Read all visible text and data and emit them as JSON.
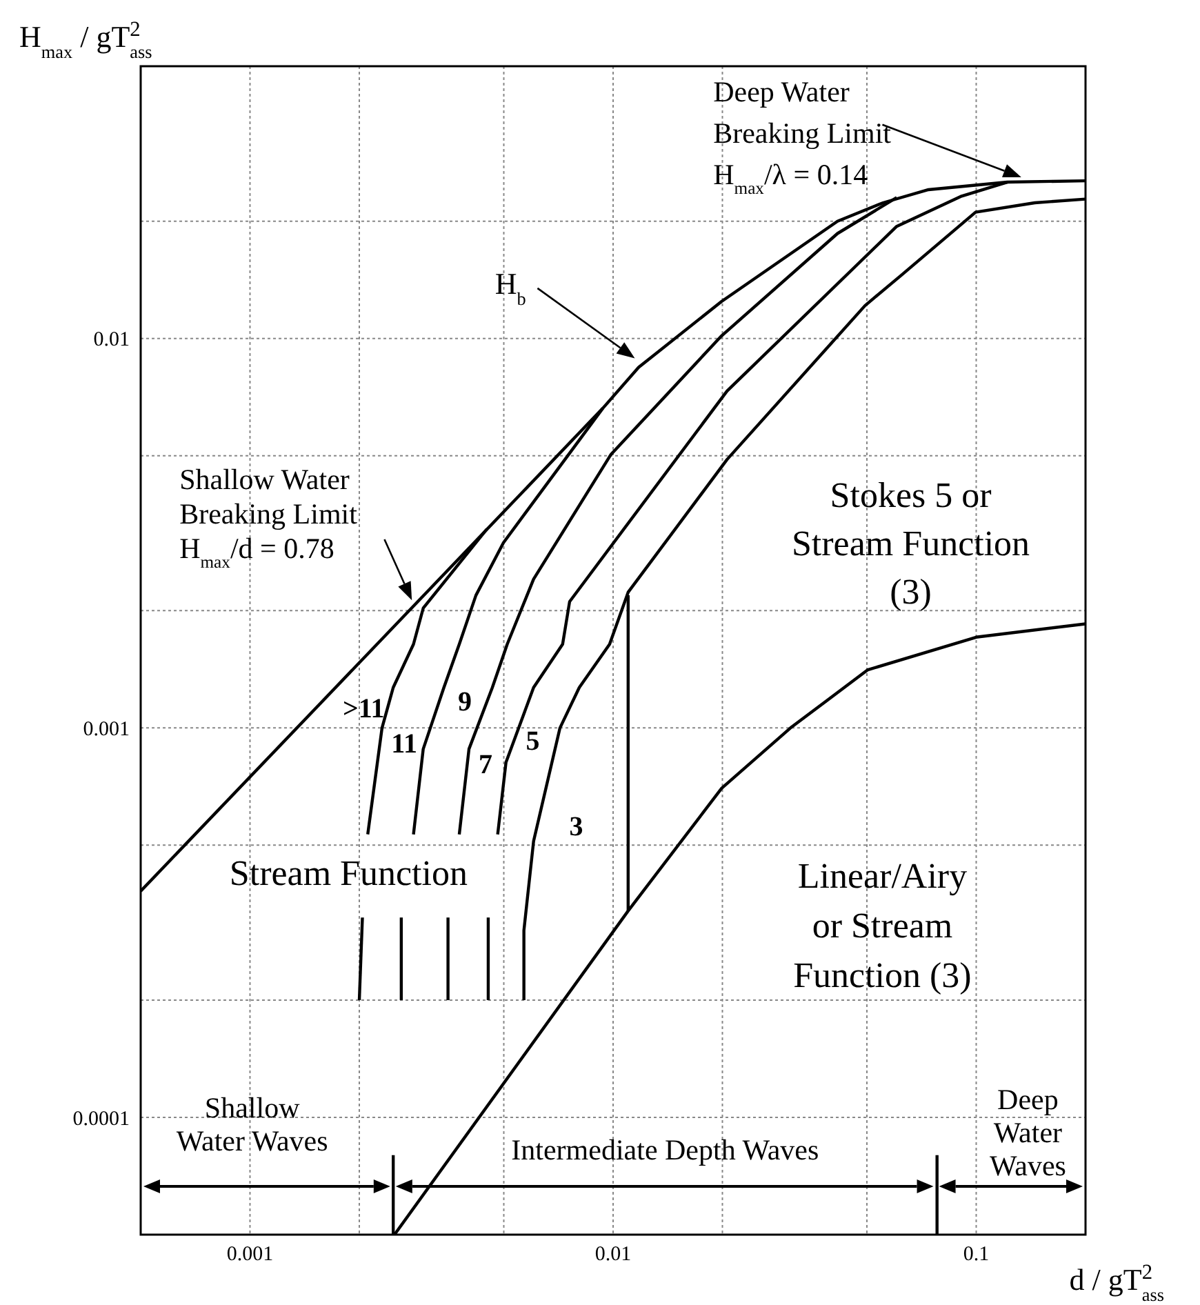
{
  "chart_data": {
    "type": "line",
    "xlabel": "d / gT$^{2}$$_{ass}$",
    "ylabel": "H$_{max}$ / gT$^{2}$$_{ass}$",
    "log": "xy",
    "grid": true,
    "line_style": "solid",
    "xlim": [
      0.0005,
      0.2
    ],
    "ylim": [
      5e-05,
      0.05
    ],
    "xticks": [
      0.001,
      {
        "value": 0.002,
        "label": null
      },
      {
        "value": 0.005,
        "label": null
      },
      0.01,
      {
        "value": 0.02,
        "label": null
      },
      {
        "value": 0.05,
        "label": null
      },
      0.1
    ],
    "yticks": [
      0.0001,
      {
        "value": 0.0002,
        "label": null
      },
      {
        "value": 0.0005,
        "label": null
      },
      0.001,
      {
        "value": 0.002,
        "label": null
      },
      {
        "value": 0.005,
        "label": null
      },
      0.01,
      {
        "value": 0.02,
        "label": null
      }
    ],
    "series": [
      {
        "color": "#000000",
        "x": [
          0.0005,
          0.00937,
          0.01176,
          0.0199,
          0.0415,
          0.0554,
          0.0739,
          0.1218,
          0.2
        ],
        "values": [
          0.000381,
          0.00662,
          0.00843,
          0.01245,
          0.02,
          0.0223,
          0.0241,
          0.0252,
          0.0254
        ]
      },
      {
        "color": "#000000",
        "x": [
          0.002,
          0.00204
        ],
        "values": [
          0.0002,
          0.000326
        ]
      },
      {
        "color": "#000000",
        "x": [
          0.00211,
          0.00231,
          0.00248,
          0.00282,
          0.003,
          0.00449
        ],
        "values": [
          0.000533,
          0.001,
          0.00127,
          0.00164,
          0.00203,
          0.00324
        ]
      },
      {
        "color": "#000000",
        "x": [
          0.00261,
          0.00261
        ],
        "values": [
          0.0002,
          0.000326
        ]
      },
      {
        "color": "#000000",
        "x": [
          0.00282,
          0.003,
          0.00342,
          0.00377,
          0.00419,
          0.00499,
          0.00937
        ],
        "values": [
          0.000533,
          0.000883,
          0.00127,
          0.00164,
          0.00219,
          0.00299,
          0.00662
        ]
      },
      {
        "color": "#000000",
        "x": [
          0.00351,
          0.00351
        ],
        "values": [
          0.0002,
          0.000326
        ]
      },
      {
        "color": "#000000",
        "x": [
          0.00377,
          0.00401,
          0.00465,
          0.00511,
          0.00604,
          0.00987,
          0.0199,
          0.0415,
          0.0604
        ],
        "values": [
          0.000533,
          0.000883,
          0.00127,
          0.00164,
          0.00241,
          0.00504,
          0.01016,
          0.0186,
          0.023
        ]
      },
      {
        "color": "#000000",
        "x": [
          0.00453,
          0.00453
        ],
        "values": [
          0.0002,
          0.000326
        ]
      },
      {
        "color": "#000000",
        "x": [
          0.00481,
          0.00507,
          0.00604,
          0.00726,
          0.00759,
          0.0206,
          0.0604,
          0.0912,
          0.1218
        ],
        "values": [
          0.000533,
          0.000816,
          0.00127,
          0.00164,
          0.00211,
          0.00733,
          0.0194,
          0.0232,
          0.0252
        ]
      },
      {
        "color": "#000000",
        "x": [
          0.00568,
          0.00568,
          0.00604,
          0.00714,
          0.00807,
          0.00978,
          0.011,
          0.0206,
          0.0494,
          0.062,
          0.0996,
          0.145,
          0.2
        ],
        "values": [
          0.0002,
          0.000302,
          0.000512,
          0.001,
          0.00127,
          0.00164,
          0.00223,
          0.00489,
          0.01214,
          0.0145,
          0.0211,
          0.0223,
          0.0228
        ]
      },
      {
        "color": "#000000",
        "x": [
          0.011,
          0.011
        ],
        "values": [
          0.00219,
          0.000339
        ]
      },
      {
        "color": "#000000",
        "x": [
          0.0025,
          0.011,
          0.0199,
          0.0308,
          0.0503,
          0.1,
          0.2
        ],
        "values": [
          5e-05,
          0.000339,
          0.0007,
          0.001,
          0.00141,
          0.00171,
          0.00185
        ]
      },
      {
        "color": "#000000",
        "x": [
          0.00248,
          0.00248
        ],
        "values": [
          5e-05,
          8e-05
        ]
      },
      {
        "color": "#000000",
        "x": [
          0.078,
          0.078
        ],
        "values": [
          5e-05,
          8e-05
        ]
      }
    ],
    "annotations": [
      "Deep Water\nBreaking Limit\nH$_{max}$/λ = 0.14",
      "H$_{b}$",
      "Shallow Water\nBreaking Limit\nH$_{max}$/d = 0.78",
      ">11",
      "11",
      "9",
      "7",
      "5",
      "3",
      "Stream Function",
      "Stokes 5 or\nStream Function\n(3)",
      "Linear/Airy\nor Stream\nFunction (3)",
      "Shallow\nWater Waves",
      "Intermediate Depth Waves",
      "Deep\nWater\nWaves"
    ]
  }
}
